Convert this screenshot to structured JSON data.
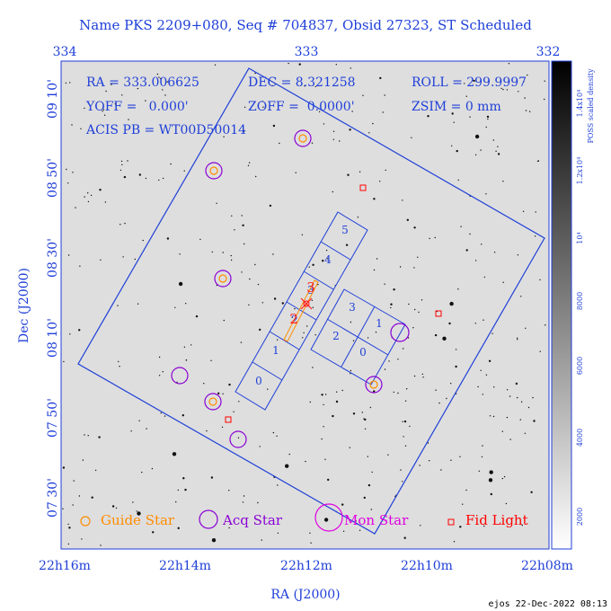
{
  "title": "Name PKS 2209+080, Seq # 704837, Obsid 27323, ST Scheduled",
  "top_ticks": [
    "334",
    "333",
    "332"
  ],
  "bottom_ticks": [
    "22h16m",
    "22h14m",
    "22h12m",
    "22h10m",
    "22h08m"
  ],
  "left_ticks": [
    "09 10'",
    "08 50'",
    "08 30'",
    "08 10'",
    "07 50'",
    "07 30'"
  ],
  "xlabel": "RA (J2000)",
  "ylabel": "Dec (J2000)",
  "info": {
    "ra": "RA = 333.006625",
    "dec": "DEC = 8.321258",
    "roll": "ROLL = 299.9997",
    "yoff": "YOFF =   0.000'",
    "zoff": "ZOFF =  0.0000'",
    "zsim": "ZSIM = 0 mm",
    "acis": "ACIS PB = WT00D50014"
  },
  "colorbar": {
    "label": "POSS scaled density",
    "ticks": [
      "2000",
      "4000",
      "6000",
      "8000",
      "10⁴",
      "1.2x10⁴",
      "1.4x10⁴"
    ]
  },
  "ccd_labels_i": [
    "0",
    "1",
    "2",
    "3"
  ],
  "ccd_labels_s": [
    "0",
    "1",
    "2",
    "3",
    "4",
    "5"
  ],
  "hrc_labels": [
    "2",
    "3"
  ],
  "legend": [
    {
      "label": "Guide Star",
      "color": "#ff8c00"
    },
    {
      "label": "Acq Star",
      "color": "#8a00d4"
    },
    {
      "label": "Mon Star",
      "color": "#e000e0"
    },
    {
      "label": "Fid Light",
      "color": "#ff0000"
    }
  ],
  "footer": "ejos 22-Dec-2022 08:13"
}
